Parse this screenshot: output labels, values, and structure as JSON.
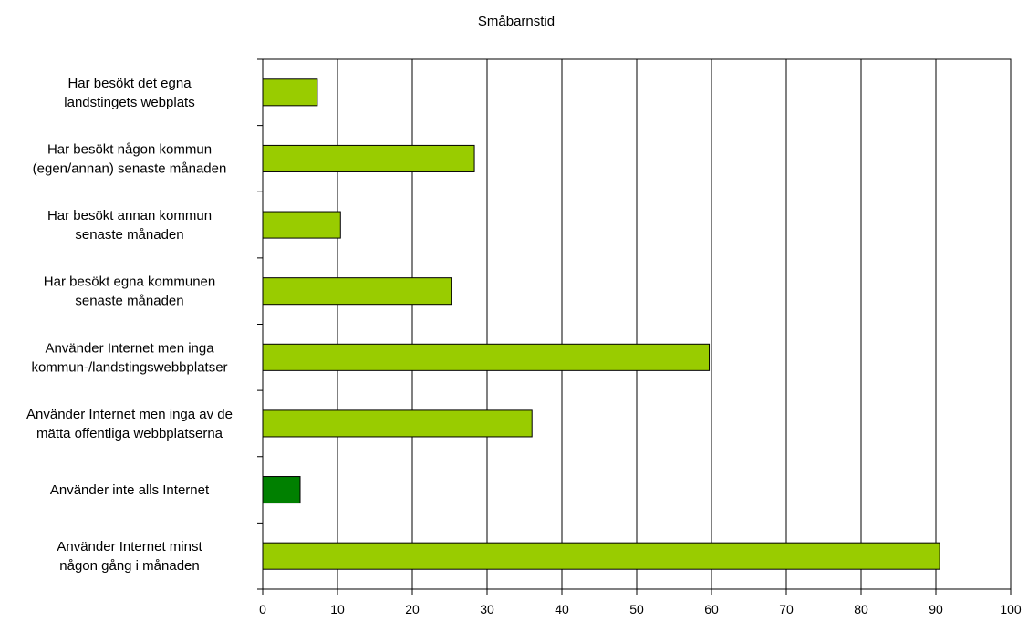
{
  "chart_data": {
    "type": "bar",
    "orientation": "horizontal",
    "title": "Småbarnstid",
    "xlabel": "",
    "ylabel": "",
    "xlim": [
      0,
      100
    ],
    "x_ticks": [
      0,
      10,
      20,
      30,
      40,
      50,
      60,
      70,
      80,
      90,
      100
    ],
    "grid": "vertical",
    "legend": "none",
    "colors": {
      "bar": "#99cc00",
      "bar_highlight": "#008000",
      "edge": "#000000"
    },
    "categories": [
      [
        "Har besökt det egna",
        "landstingets webplats"
      ],
      [
        "Har besökt någon kommun",
        "(egen/annan) senaste månaden"
      ],
      [
        "Har besökt annan kommun",
        "senaste månaden"
      ],
      [
        "Har besökt egna kommunen",
        "senaste månaden"
      ],
      [
        "Använder Internet men inga",
        "kommun-/landstingswebbplatser"
      ],
      [
        "Använder Internet men inga av de",
        "mätta offentliga webbplatserna"
      ],
      [
        "Använder inte alls Internet"
      ],
      [
        "Använder Internet minst",
        "någon gång i månaden"
      ]
    ],
    "values": [
      7.3,
      28.3,
      10.4,
      25.2,
      59.7,
      36.0,
      5.0,
      90.5
    ],
    "highlight_index": 6
  }
}
